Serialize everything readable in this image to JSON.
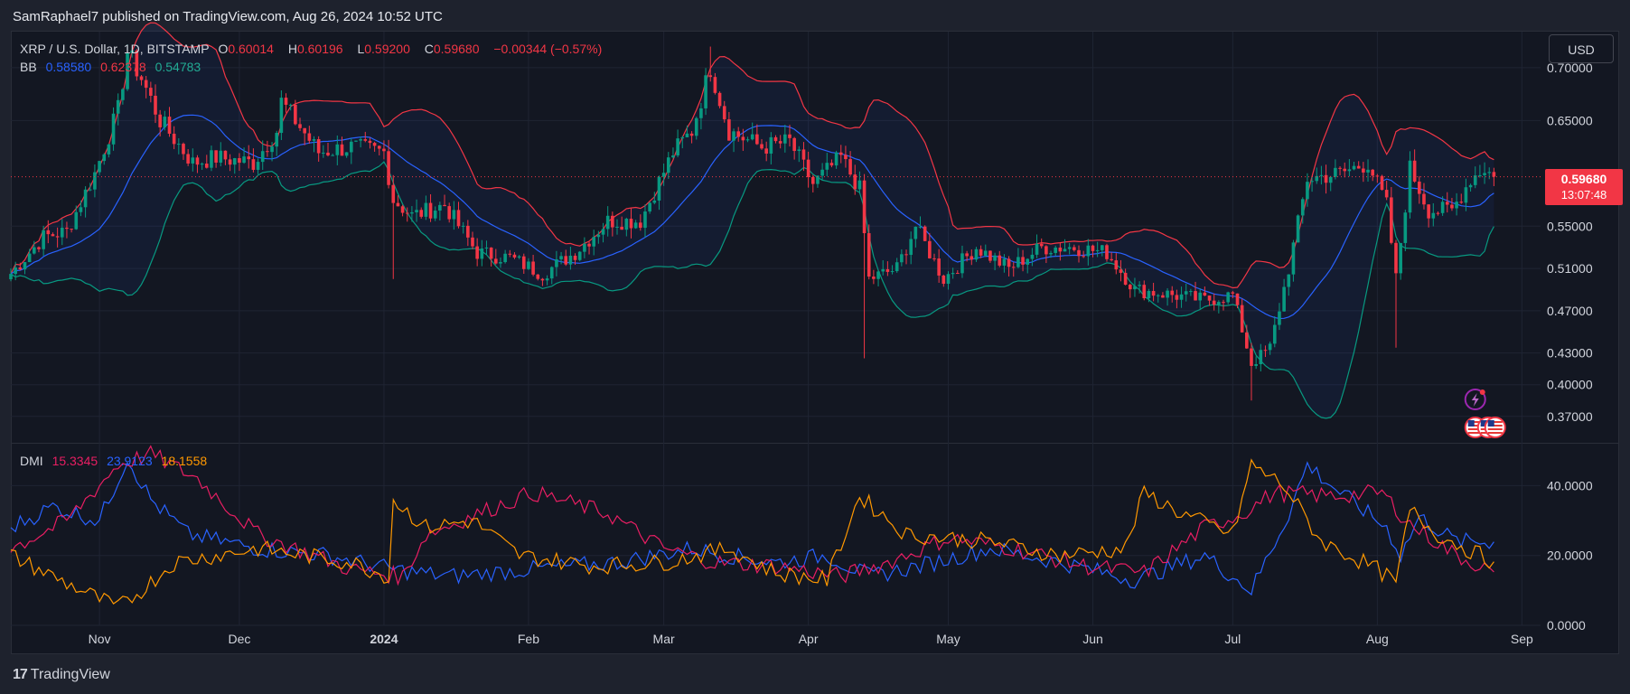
{
  "header": {
    "publisher_line": "SamRaphael7 published on TradingView.com, Aug 26, 2024 10:52 UTC"
  },
  "legend": {
    "symbol": "XRP / U.S. Dollar, 1D, BITSTAMP",
    "open_label": "O",
    "open": "0.60014",
    "high_label": "H",
    "high": "0.60196",
    "low_label": "L",
    "low": "0.59200",
    "close_label": "C",
    "close": "0.59680",
    "change": "−0.00344 (−0.57%)",
    "bb_label": "BB",
    "bb_basis": "0.58580",
    "bb_upper": "0.62378",
    "bb_lower": "0.54783",
    "dmi_label": "DMI",
    "dmi_minus": "15.3345",
    "dmi_plus": "23.9123",
    "dmi_adx": "18.1558"
  },
  "currency_button": "USD",
  "last_price": {
    "value": "0.59680",
    "countdown": "13:07:48"
  },
  "footer": {
    "logo": "17",
    "brand": "TradingView"
  },
  "colors": {
    "up": "#089981",
    "down": "#f23645",
    "bb_basis": "#2962ff",
    "bb_upper": "#f23645",
    "bb_lower": "#089981",
    "dmi_plus": "#2962ff",
    "dmi_minus": "#e91e63",
    "adx": "#ff9800",
    "background": "#131722"
  },
  "chart_data": [
    {
      "type": "candlestick",
      "title": "XRP / U.S. Dollar, 1D, BITSTAMP",
      "x_tick_labels": [
        "Nov",
        "Dec",
        "2024",
        "Feb",
        "Mar",
        "Apr",
        "May",
        "Jun",
        "Jul",
        "Aug",
        "Sep"
      ],
      "y_tick_labels": [
        "0.70000",
        "0.65000",
        "0.55000",
        "0.51000",
        "0.47000",
        "0.43000",
        "0.40000",
        "0.37000"
      ],
      "x_range": [
        "2023-10-13",
        "2024-09-05"
      ],
      "ylim": [
        0.345,
        0.735
      ],
      "grid": true,
      "last_close": 0.5968,
      "close_anchors": [
        [
          "2023-10-13",
          0.505
        ],
        [
          "2023-10-20",
          0.54
        ],
        [
          "2023-10-25",
          0.545
        ],
        [
          "2023-10-31",
          0.6
        ],
        [
          "2023-11-05",
          0.66
        ],
        [
          "2023-11-07",
          0.715
        ],
        [
          "2023-11-10",
          0.69
        ],
        [
          "2023-11-14",
          0.65
        ],
        [
          "2023-11-21",
          0.61
        ],
        [
          "2023-11-26",
          0.615
        ],
        [
          "2023-12-04",
          0.61
        ],
        [
          "2023-12-09",
          0.64
        ],
        [
          "2023-12-10",
          0.668
        ],
        [
          "2023-12-18",
          0.62
        ],
        [
          "2023-12-25",
          0.625
        ],
        [
          "2024-01-01",
          0.62
        ],
        [
          "2024-01-03",
          0.575
        ],
        [
          "2024-01-07",
          0.56
        ],
        [
          "2024-01-14",
          0.57
        ],
        [
          "2024-01-21",
          0.525
        ],
        [
          "2024-01-28",
          0.52
        ],
        [
          "2024-02-04",
          0.505
        ],
        [
          "2024-02-11",
          0.525
        ],
        [
          "2024-02-18",
          0.555
        ],
        [
          "2024-02-25",
          0.555
        ],
        [
          "2024-03-03",
          0.62
        ],
        [
          "2024-03-07",
          0.64
        ],
        [
          "2024-03-11",
          0.7
        ],
        [
          "2024-03-15",
          0.64
        ],
        [
          "2024-03-22",
          0.625
        ],
        [
          "2024-03-28",
          0.63
        ],
        [
          "2024-04-02",
          0.59
        ],
        [
          "2024-04-08",
          0.615
        ],
        [
          "2024-04-12",
          0.585
        ],
        [
          "2024-04-14",
          0.5
        ],
        [
          "2024-04-20",
          0.51
        ],
        [
          "2024-04-24",
          0.55
        ],
        [
          "2024-04-30",
          0.5
        ],
        [
          "2024-05-07",
          0.53
        ],
        [
          "2024-05-14",
          0.51
        ],
        [
          "2024-05-21",
          0.53
        ],
        [
          "2024-05-28",
          0.53
        ],
        [
          "2024-06-04",
          0.525
        ],
        [
          "2024-06-10",
          0.49
        ],
        [
          "2024-06-18",
          0.485
        ],
        [
          "2024-06-25",
          0.48
        ],
        [
          "2024-07-01",
          0.485
        ],
        [
          "2024-07-05",
          0.42
        ],
        [
          "2024-07-09",
          0.435
        ],
        [
          "2024-07-13",
          0.51
        ],
        [
          "2024-07-17",
          0.595
        ],
        [
          "2024-07-24",
          0.6
        ],
        [
          "2024-07-30",
          0.61
        ],
        [
          "2024-08-03",
          0.57
        ],
        [
          "2024-08-05",
          0.5
        ],
        [
          "2024-08-08",
          0.605
        ],
        [
          "2024-08-12",
          0.565
        ],
        [
          "2024-08-17",
          0.565
        ],
        [
          "2024-08-21",
          0.595
        ],
        [
          "2024-08-24",
          0.605
        ],
        [
          "2024-08-26",
          0.5968
        ]
      ],
      "overlays": [
        {
          "name": "BB",
          "basis": 0.5858,
          "upper": 0.62378,
          "lower": 0.54783
        }
      ]
    },
    {
      "type": "line",
      "title": "DMI",
      "y_tick_labels": [
        "40.0000",
        "20.0000",
        "0.0000"
      ],
      "ylim": [
        0,
        52
      ],
      "grid": true,
      "series": [
        {
          "name": "+DI",
          "color": "#2962ff",
          "last": 23.9123,
          "anchors": [
            [
              "2023-10-13",
              28
            ],
            [
              "2023-10-22",
              34
            ],
            [
              "2023-11-01",
              30
            ],
            [
              "2023-11-07",
              48
            ],
            [
              "2023-11-12",
              36
            ],
            [
              "2023-11-20",
              26
            ],
            [
              "2023-12-05",
              22
            ],
            [
              "2023-12-20",
              20
            ],
            [
              "2024-01-03",
              16
            ],
            [
              "2024-01-15",
              14
            ],
            [
              "2024-02-01",
              16
            ],
            [
              "2024-02-20",
              18
            ],
            [
              "2024-03-07",
              22
            ],
            [
              "2024-03-15",
              20
            ],
            [
              "2024-03-25",
              18
            ],
            [
              "2024-04-05",
              20
            ],
            [
              "2024-04-14",
              14
            ],
            [
              "2024-04-25",
              17
            ],
            [
              "2024-05-10",
              22
            ],
            [
              "2024-05-25",
              18
            ],
            [
              "2024-06-10",
              13
            ],
            [
              "2024-06-25",
              20
            ],
            [
              "2024-07-05",
              10
            ],
            [
              "2024-07-13",
              32
            ],
            [
              "2024-07-17",
              46
            ],
            [
              "2024-07-24",
              38
            ],
            [
              "2024-08-03",
              28
            ],
            [
              "2024-08-06",
              20
            ],
            [
              "2024-08-10",
              31
            ],
            [
              "2024-08-18",
              24
            ],
            [
              "2024-08-26",
              23.9
            ]
          ]
        },
        {
          "name": "−DI",
          "color": "#e91e63",
          "last": 15.3345,
          "anchors": [
            [
              "2023-10-13",
              22
            ],
            [
              "2023-10-25",
              30
            ],
            [
              "2023-11-05",
              46
            ],
            [
              "2023-11-12",
              49
            ],
            [
              "2023-11-22",
              42
            ],
            [
              "2023-12-05",
              26
            ],
            [
              "2023-12-25",
              16
            ],
            [
              "2024-01-05",
              14
            ],
            [
              "2024-01-10",
              26
            ],
            [
              "2024-01-25",
              34
            ],
            [
              "2024-02-02",
              38
            ],
            [
              "2024-02-18",
              32
            ],
            [
              "2024-03-01",
              22
            ],
            [
              "2024-03-12",
              18
            ],
            [
              "2024-03-25",
              17
            ],
            [
              "2024-04-08",
              14
            ],
            [
              "2024-04-18",
              18
            ],
            [
              "2024-05-01",
              25
            ],
            [
              "2024-05-15",
              22
            ],
            [
              "2024-05-30",
              17
            ],
            [
              "2024-06-12",
              15
            ],
            [
              "2024-06-25",
              28
            ],
            [
              "2024-07-03",
              32
            ],
            [
              "2024-07-10",
              38
            ],
            [
              "2024-07-22",
              37
            ],
            [
              "2024-08-02",
              38
            ],
            [
              "2024-08-08",
              29
            ],
            [
              "2024-08-18",
              20
            ],
            [
              "2024-08-26",
              15.3
            ]
          ]
        },
        {
          "name": "ADX",
          "color": "#ff9800",
          "last": 18.1558,
          "anchors": [
            [
              "2023-10-13",
              20
            ],
            [
              "2023-10-25",
              12
            ],
            [
              "2023-11-05",
              5
            ],
            [
              "2023-11-10",
              10
            ],
            [
              "2023-11-17",
              18
            ],
            [
              "2023-12-05",
              22
            ],
            [
              "2023-12-25",
              18
            ],
            [
              "2024-01-02",
              14
            ],
            [
              "2024-01-03",
              36
            ],
            [
              "2024-01-10",
              28
            ],
            [
              "2024-01-20",
              30
            ],
            [
              "2024-01-30",
              20
            ],
            [
              "2024-02-15",
              17
            ],
            [
              "2024-03-01",
              18
            ],
            [
              "2024-03-15",
              22
            ],
            [
              "2024-03-25",
              15
            ],
            [
              "2024-04-05",
              13
            ],
            [
              "2024-04-12",
              37
            ],
            [
              "2024-04-22",
              26
            ],
            [
              "2024-05-10",
              24
            ],
            [
              "2024-05-25",
              20
            ],
            [
              "2024-06-08",
              22
            ],
            [
              "2024-06-12",
              38
            ],
            [
              "2024-06-20",
              32
            ],
            [
              "2024-07-01",
              26
            ],
            [
              "2024-07-05",
              46
            ],
            [
              "2024-07-12",
              40
            ],
            [
              "2024-07-20",
              24
            ],
            [
              "2024-08-01",
              16
            ],
            [
              "2024-08-05",
              12
            ],
            [
              "2024-08-08",
              33
            ],
            [
              "2024-08-14",
              26
            ],
            [
              "2024-08-20",
              22
            ],
            [
              "2024-08-26",
              18.2
            ]
          ]
        }
      ]
    }
  ]
}
